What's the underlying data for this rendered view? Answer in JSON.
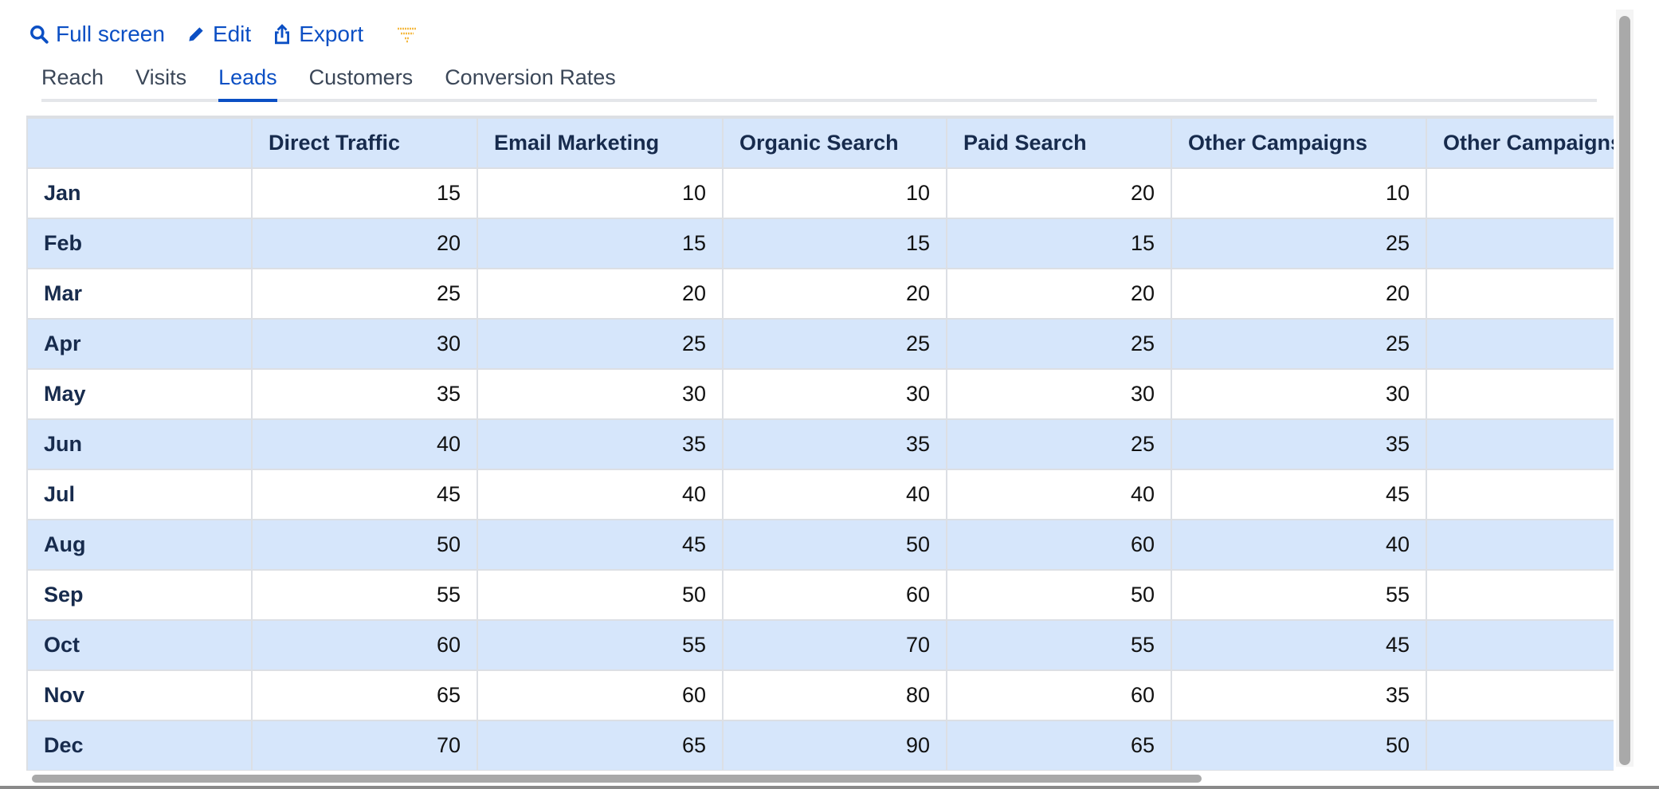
{
  "toolbar": {
    "full_screen": "Full screen",
    "edit": "Edit",
    "export": "Export",
    "icons": [
      "search-icon",
      "pencil-icon",
      "share-icon",
      "funnel-icon"
    ]
  },
  "tabs": [
    {
      "label": "Reach",
      "active": false
    },
    {
      "label": "Visits",
      "active": false
    },
    {
      "label": "Leads",
      "active": true
    },
    {
      "label": "Customers",
      "active": false
    },
    {
      "label": "Conversion Rates",
      "active": false
    }
  ],
  "table": {
    "headers": [
      "",
      "Direct Traffic",
      "Email Marketing",
      "Organic Search",
      "Paid Search",
      "Other Campaigns",
      "Other Campaigns"
    ],
    "rows": [
      {
        "month": "Jan",
        "values": [
          "15",
          "10",
          "10",
          "20",
          "10",
          ""
        ]
      },
      {
        "month": "Feb",
        "values": [
          "20",
          "15",
          "15",
          "15",
          "25",
          ""
        ]
      },
      {
        "month": "Mar",
        "values": [
          "25",
          "20",
          "20",
          "20",
          "20",
          ""
        ]
      },
      {
        "month": "Apr",
        "values": [
          "30",
          "25",
          "25",
          "25",
          "25",
          ""
        ]
      },
      {
        "month": "May",
        "values": [
          "35",
          "30",
          "30",
          "30",
          "30",
          ""
        ]
      },
      {
        "month": "Jun",
        "values": [
          "40",
          "35",
          "35",
          "25",
          "35",
          ""
        ]
      },
      {
        "month": "Jul",
        "values": [
          "45",
          "40",
          "40",
          "40",
          "45",
          ""
        ]
      },
      {
        "month": "Aug",
        "values": [
          "50",
          "45",
          "50",
          "60",
          "40",
          ""
        ]
      },
      {
        "month": "Sep",
        "values": [
          "55",
          "50",
          "60",
          "50",
          "55",
          ""
        ]
      },
      {
        "month": "Oct",
        "values": [
          "60",
          "55",
          "70",
          "55",
          "45",
          ""
        ]
      },
      {
        "month": "Nov",
        "values": [
          "65",
          "60",
          "80",
          "60",
          "35",
          ""
        ]
      },
      {
        "month": "Dec",
        "values": [
          "70",
          "65",
          "90",
          "65",
          "50",
          ""
        ]
      }
    ]
  },
  "colors": {
    "accent": "#0b4fc4",
    "header_bg": "#d6e6fb",
    "text": "#172b4d",
    "funnel": "#f5b942"
  }
}
